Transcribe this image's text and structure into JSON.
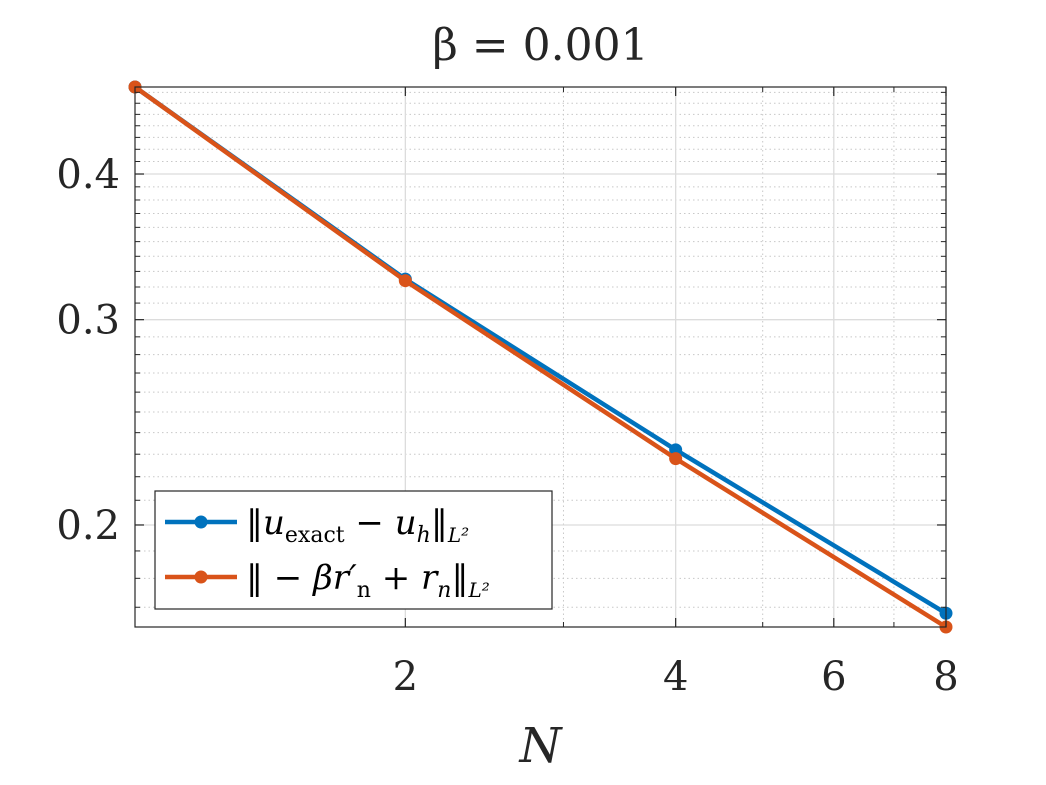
{
  "chart_data": {
    "type": "line",
    "title": "β = 0.001",
    "xlabel": "N",
    "ylabel": "",
    "xscale": "log",
    "yscale": "log",
    "xlim": [
      1,
      8
    ],
    "ylim": [
      0.1635,
      0.475
    ],
    "x": [
      1,
      2,
      4,
      8
    ],
    "xticks": [
      2,
      4,
      6,
      8
    ],
    "xtick_labels": [
      "2",
      "4",
      "6",
      "8"
    ],
    "yticks": [
      0.2,
      0.3,
      0.4
    ],
    "ytick_labels": [
      "0.2",
      "0.3",
      "0.4"
    ],
    "grid": true,
    "minor_grid": true,
    "box": true,
    "legend_position": "lower-left",
    "series": [
      {
        "name": "‖u_exact − u_h‖_{L²}",
        "legend_main": "‖u",
        "legend_sub1": "exact",
        "legend_mid": " − u",
        "legend_sub2": "h",
        "legend_end": "‖",
        "legend_norm": "L²",
        "color": "#0072BD",
        "values": [
          0.475,
          0.325,
          0.232,
          0.168
        ]
      },
      {
        "name": "‖ − βr′_n + r_n‖_{L²}",
        "legend_main": "‖ − βr′",
        "legend_sub1": "n",
        "legend_mid": " + r",
        "legend_sub2": "n",
        "legend_end": "‖",
        "legend_norm": "L²",
        "color": "#D95319",
        "values": [
          0.475,
          0.324,
          0.228,
          0.1635
        ]
      }
    ]
  }
}
